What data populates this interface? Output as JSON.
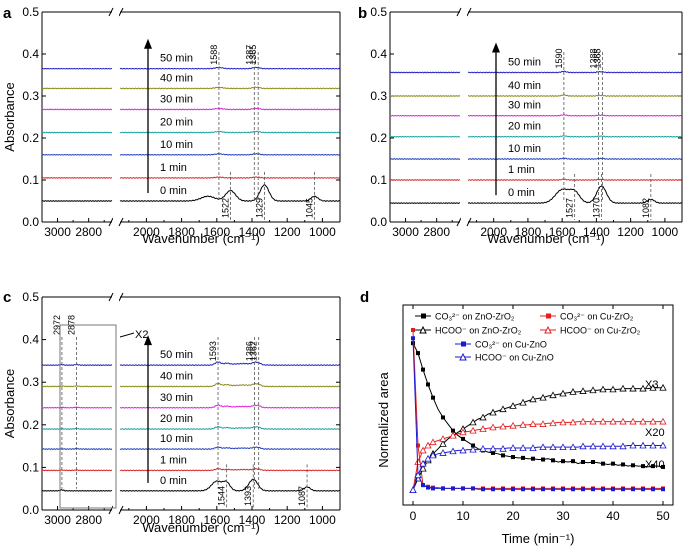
{
  "chart_data": [
    {
      "panel": "a",
      "type": "line",
      "xlabel": "Wavenumber (cm⁻¹)",
      "ylabel": "Absorbance",
      "ylim": [
        0.0,
        0.5
      ],
      "yticks": [
        "0.0",
        "0.1",
        "0.2",
        "0.3",
        "0.4",
        "0.5"
      ],
      "xticks": [
        "3000",
        "2800",
        "2000",
        "1800",
        "1600",
        "1400",
        "1200",
        "1000"
      ],
      "baselines": [
        0.05,
        0.105,
        0.16,
        0.213,
        0.268,
        0.318,
        0.365
      ],
      "series_colors": [
        "#000000",
        "#d62728",
        "#1f3fbf",
        "#17a2a2",
        "#e020e0",
        "#8c8c1a",
        "#2020c0"
      ],
      "series_labels": [
        "0 min",
        "1 min",
        "10 min",
        "20 min",
        "30 min",
        "40 min",
        "50 min"
      ],
      "peaks_top": [
        "1588",
        "1387",
        "1365"
      ],
      "peaks_bottom": [
        "1522",
        "1329",
        "1045"
      ]
    },
    {
      "panel": "b",
      "type": "line",
      "xlabel": "Wavenumber (cm⁻¹)",
      "ylabel": "",
      "ylim": [
        0.0,
        0.5
      ],
      "yticks": [
        "0.0",
        "0.1",
        "0.2",
        "0.3",
        "0.4",
        "0.5"
      ],
      "xticks": [
        "3000",
        "2800",
        "2000",
        "1800",
        "1600",
        "1400",
        "1200",
        "1000"
      ],
      "baselines": [
        0.045,
        0.1,
        0.15,
        0.203,
        0.253,
        0.3,
        0.356
      ],
      "series_colors": [
        "#000000",
        "#d62728",
        "#1f3fbf",
        "#17a2a2",
        "#e020e0",
        "#8c8c1a",
        "#2020c0"
      ],
      "series_labels": [
        "0 min",
        "1 min",
        "10 min",
        "20 min",
        "30 min",
        "40 min",
        "50 min"
      ],
      "peaks_top": [
        "1590",
        "1388",
        "1365"
      ],
      "peaks_bottom": [
        "1527",
        "1370",
        "1082"
      ]
    },
    {
      "panel": "c",
      "type": "line",
      "xlabel": "Wavenumber (cm⁻¹)",
      "ylabel": "Absorbance",
      "ylim": [
        0.0,
        0.5
      ],
      "yticks": [
        "0.0",
        "0.1",
        "0.2",
        "0.3",
        "0.4",
        "0.5"
      ],
      "xticks": [
        "3000",
        "2800",
        "2000",
        "1800",
        "1600",
        "1400",
        "1200",
        "1000"
      ],
      "baselines": [
        0.045,
        0.093,
        0.143,
        0.19,
        0.24,
        0.29,
        0.34
      ],
      "series_colors": [
        "#000000",
        "#d62728",
        "#1f3fbf",
        "#17a2a2",
        "#e020e0",
        "#8c8c1a",
        "#2020c0"
      ],
      "series_labels": [
        "0 min",
        "1 min",
        "10 min",
        "20 min",
        "30 min",
        "40 min",
        "50 min"
      ],
      "peaks_top": [
        "2972",
        "2878",
        "1593",
        "1386",
        "1362"
      ],
      "peaks_bottom": [
        "1544",
        "1393",
        "1087"
      ],
      "inset_label": "X2"
    },
    {
      "panel": "d",
      "type": "line",
      "xlabel": "Time (min⁻¹)",
      "ylabel": "Normalized area",
      "xlim": [
        -2,
        52
      ],
      "xticks": [
        0,
        10,
        20,
        30,
        40,
        50
      ],
      "legend": [
        {
          "text": "CO₃²⁻ on ZnO-ZrO₂",
          "color": "#000000",
          "marker": "square-filled"
        },
        {
          "text": "CO₃²⁻ on Cu-ZrO₂",
          "color": "#e02020",
          "marker": "square-filled"
        },
        {
          "text": "HCOO⁻ on ZnO-ZrO₂",
          "color": "#000000",
          "marker": "triangle-open"
        },
        {
          "text": "HCOO⁻ on Cu-ZrO₂",
          "color": "#e02020",
          "marker": "triangle-open"
        },
        {
          "text": "CO₃²⁻ on Cu-ZnO",
          "color": "#1a1ad0",
          "marker": "square-filled"
        },
        {
          "text": "HCOO⁻ on Cu-ZnO",
          "color": "#1a1ad0",
          "marker": "triangle-open"
        }
      ],
      "annotations": [
        "X3",
        "X20",
        "X40"
      ],
      "x": [
        0,
        1,
        2,
        3,
        4,
        5,
        6,
        7,
        8,
        9,
        10,
        11,
        12,
        13,
        14,
        15,
        16,
        17,
        18,
        19,
        20,
        21,
        22,
        23,
        24,
        25,
        26,
        27,
        28,
        29,
        30,
        31,
        32,
        33,
        34,
        35,
        36,
        37,
        38,
        39,
        40,
        41,
        42,
        43,
        44,
        45,
        46,
        47,
        48,
        49,
        50
      ],
      "series": [
        {
          "name": "CO3 on ZnO-ZrO2",
          "values": [
            0.92,
            0.86,
            0.76,
            0.67,
            0.59,
            0.52,
            0.47,
            0.43,
            0.39,
            0.36,
            0.34,
            0.32,
            0.3,
            0.28,
            0.27,
            0.26,
            0.255,
            0.25,
            0.24,
            0.235,
            0.23,
            0.225,
            0.225,
            0.22,
            0.22,
            0.215,
            0.215,
            0.22,
            0.21,
            0.2,
            0.205,
            0.2,
            0.205,
            0.19,
            0.2,
            0.195,
            0.2,
            0.195,
            0.19,
            0.185,
            0.19,
            0.18,
            0.185,
            0.175,
            0.18,
            0.175,
            0.175,
            0.17,
            0.175,
            0.175,
            0.17
          ]
        },
        {
          "name": "CO3 on Cu-ZrO2",
          "values": [
            1.0,
            0.3,
            0.06,
            0.05,
            0.045,
            0.045,
            0.04,
            0.04,
            0.04,
            0.04,
            0.04,
            0.04,
            0.04,
            0.04,
            0.04,
            0.04,
            0.04,
            0.04,
            0.04,
            0.04,
            0.04,
            0.04,
            0.04,
            0.04,
            0.04,
            0.04,
            0.04,
            0.04,
            0.04,
            0.04,
            0.04,
            0.04,
            0.04,
            0.04,
            0.04,
            0.04,
            0.04,
            0.04,
            0.04,
            0.04,
            0.04,
            0.04,
            0.04,
            0.04,
            0.04,
            0.04,
            0.04,
            0.04,
            0.04,
            0.04,
            0.04
          ]
        },
        {
          "name": "HCOO on ZnO-ZrO2",
          "values": [
            0.03,
            0.1,
            0.16,
            0.21,
            0.25,
            0.28,
            0.31,
            0.34,
            0.36,
            0.38,
            0.4,
            0.42,
            0.44,
            0.46,
            0.47,
            0.49,
            0.5,
            0.51,
            0.52,
            0.53,
            0.54,
            0.55,
            0.56,
            0.57,
            0.58,
            0.585,
            0.59,
            0.6,
            0.605,
            0.61,
            0.615,
            0.62,
            0.625,
            0.625,
            0.63,
            0.63,
            0.635,
            0.635,
            0.64,
            0.64,
            0.64,
            0.64,
            0.645,
            0.645,
            0.645,
            0.645,
            0.645,
            0.645,
            0.65,
            0.65,
            0.65
          ]
        },
        {
          "name": "HCOO on Cu-ZrO2",
          "values": [
            0.03,
            0.2,
            0.27,
            0.3,
            0.32,
            0.33,
            0.34,
            0.35,
            0.36,
            0.37,
            0.38,
            0.385,
            0.39,
            0.395,
            0.4,
            0.405,
            0.41,
            0.41,
            0.415,
            0.415,
            0.42,
            0.42,
            0.425,
            0.425,
            0.43,
            0.43,
            0.43,
            0.435,
            0.435,
            0.44,
            0.44,
            0.44,
            0.44,
            0.445,
            0.445,
            0.445,
            0.445,
            0.445,
            0.445,
            0.445,
            0.445,
            0.445,
            0.445,
            0.445,
            0.445,
            0.445,
            0.445,
            0.445,
            0.445,
            0.445,
            0.445
          ]
        },
        {
          "name": "CO3 on Cu-ZnO",
          "values": [
            0.95,
            0.12,
            0.06,
            0.045,
            0.04,
            0.04,
            0.04,
            0.04,
            0.04,
            0.04,
            0.04,
            0.04,
            0.04,
            0.035,
            0.035,
            0.035,
            0.035,
            0.035,
            0.035,
            0.035,
            0.035,
            0.035,
            0.035,
            0.035,
            0.035,
            0.035,
            0.035,
            0.035,
            0.035,
            0.035,
            0.035,
            0.035,
            0.035,
            0.035,
            0.035,
            0.035,
            0.035,
            0.035,
            0.035,
            0.035,
            0.035,
            0.035,
            0.035,
            0.035,
            0.035,
            0.035,
            0.035,
            0.035,
            0.035,
            0.035,
            0.035
          ]
        },
        {
          "name": "HCOO on Cu-ZnO",
          "values": [
            0.03,
            0.12,
            0.19,
            0.22,
            0.24,
            0.25,
            0.255,
            0.26,
            0.265,
            0.27,
            0.27,
            0.275,
            0.275,
            0.275,
            0.28,
            0.28,
            0.28,
            0.28,
            0.28,
            0.285,
            0.285,
            0.285,
            0.285,
            0.285,
            0.285,
            0.29,
            0.29,
            0.29,
            0.29,
            0.29,
            0.29,
            0.29,
            0.29,
            0.29,
            0.295,
            0.295,
            0.295,
            0.295,
            0.295,
            0.295,
            0.295,
            0.295,
            0.295,
            0.3,
            0.3,
            0.3,
            0.3,
            0.3,
            0.3,
            0.3,
            0.3
          ]
        }
      ]
    }
  ],
  "panels": {
    "a": {
      "letter": "a"
    },
    "b": {
      "letter": "b"
    },
    "c": {
      "letter": "c"
    },
    "d": {
      "letter": "d"
    }
  }
}
